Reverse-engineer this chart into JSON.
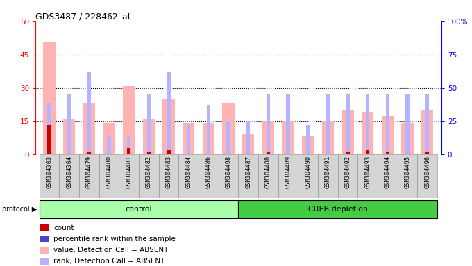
{
  "title": "GDS3487 / 228462_at",
  "samples": [
    "GSM304303",
    "GSM304304",
    "GSM304479",
    "GSM304480",
    "GSM304481",
    "GSM304482",
    "GSM304483",
    "GSM304484",
    "GSM304486",
    "GSM304498",
    "GSM304487",
    "GSM304488",
    "GSM304489",
    "GSM304490",
    "GSM304491",
    "GSM304492",
    "GSM304493",
    "GSM304494",
    "GSM304495",
    "GSM304496"
  ],
  "absent_value": [
    51,
    16,
    23,
    14,
    31,
    16,
    25,
    14,
    14,
    23,
    9,
    15,
    15,
    8,
    15,
    20,
    19,
    17,
    14,
    20
  ],
  "absent_rank_pct": [
    23,
    27,
    37,
    8,
    8,
    27,
    37,
    13,
    22,
    15,
    15,
    27,
    27,
    13,
    27,
    27,
    27,
    27,
    27,
    27
  ],
  "count_value": [
    13,
    0,
    1,
    0,
    3,
    1,
    2,
    0,
    0,
    0,
    0,
    1,
    0,
    0,
    0,
    1,
    2,
    1,
    0,
    1
  ],
  "rank_pct": [
    22,
    0,
    2,
    0,
    5,
    2,
    3,
    0,
    0,
    0,
    0,
    2,
    0,
    0,
    0,
    2,
    3,
    2,
    0,
    2
  ],
  "control_count": 10,
  "creb_count": 10,
  "ylim_left": [
    0,
    60
  ],
  "ylim_right": [
    0,
    100
  ],
  "yticks_left": [
    0,
    15,
    30,
    45,
    60
  ],
  "yticks_right": [
    0,
    25,
    50,
    75,
    100
  ],
  "ytick_labels_left": [
    "0",
    "15",
    "30",
    "45",
    "60"
  ],
  "ytick_labels_right": [
    "0",
    "25",
    "50",
    "75",
    "100%"
  ],
  "color_absent_value": "#ffb3b3",
  "color_absent_rank": "#b3b3ff",
  "color_count": "#cc0000",
  "color_rank": "#4444cc",
  "bg_color": "#d4d4d4",
  "control_bg": "#aaffaa",
  "creb_bg": "#44cc44",
  "grid_color": "black",
  "bar_width": 0.6,
  "narrow_bar_width": 0.18
}
